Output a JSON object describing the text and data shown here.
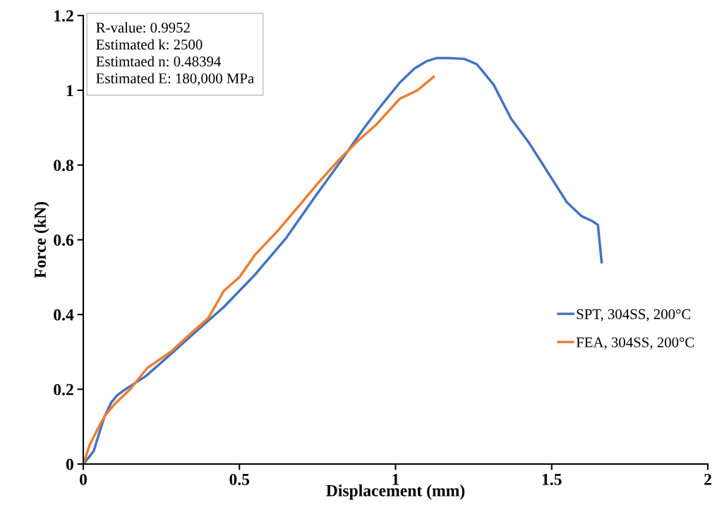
{
  "chart_data": {
    "type": "line",
    "xlabel": "Displacement (mm)",
    "ylabel": "Force (kN)",
    "annotations": [
      "R-value: 0.9952\nEstimated k: 2500\nEstimtaed n: 0.48394\nEstimated E: 180,000 MPa"
    ],
    "xlim": [
      0,
      2
    ],
    "ylim": [
      0,
      1.2
    ],
    "xticks": [
      0,
      0.5,
      1,
      1.5,
      2
    ],
    "yticks": [
      0,
      0.2,
      0.4,
      0.6,
      0.8,
      1,
      1.2
    ],
    "grid": false,
    "legend": "right",
    "line_style": "solid",
    "marker": "none",
    "series": [
      {
        "name": "SPT, 304SS, 200°C",
        "color": "#4472c4",
        "x": [
          0,
          0.02,
          0.034,
          0.05,
          0.068,
          0.09,
          0.11,
          0.135,
          0.2,
          0.275,
          0.352,
          0.45,
          0.546,
          0.65,
          0.743,
          0.82,
          0.9,
          0.953,
          1.013,
          1.06,
          1.1,
          1.13,
          1.17,
          1.22,
          1.26,
          1.28,
          1.314,
          1.37,
          1.427,
          1.488,
          1.549,
          1.596,
          1.63,
          1.648,
          1.66
        ],
        "values": [
          0,
          0.02,
          0.036,
          0.08,
          0.127,
          0.165,
          0.185,
          0.2,
          0.235,
          0.29,
          0.348,
          0.42,
          0.503,
          0.605,
          0.716,
          0.805,
          0.9,
          0.958,
          1.02,
          1.058,
          1.078,
          1.086,
          1.086,
          1.084,
          1.07,
          1.05,
          1.015,
          0.924,
          0.86,
          0.78,
          0.7,
          0.663,
          0.65,
          0.64,
          0.54
        ]
      },
      {
        "name": "FEA, 304SS, 200°C",
        "color": "#ed7d31",
        "x": [
          0,
          0.02,
          0.05,
          0.07,
          0.1,
          0.15,
          0.205,
          0.28,
          0.352,
          0.4,
          0.45,
          0.5,
          0.55,
          0.625,
          0.7,
          0.75,
          0.82,
          0.88,
          0.937,
          1.013,
          1.07,
          1.122
        ],
        "values": [
          0,
          0.05,
          0.1,
          0.13,
          0.16,
          0.2,
          0.257,
          0.3,
          0.355,
          0.39,
          0.463,
          0.5,
          0.56,
          0.626,
          0.7,
          0.75,
          0.815,
          0.865,
          0.907,
          0.977,
          1.0,
          1.036
        ]
      }
    ]
  }
}
